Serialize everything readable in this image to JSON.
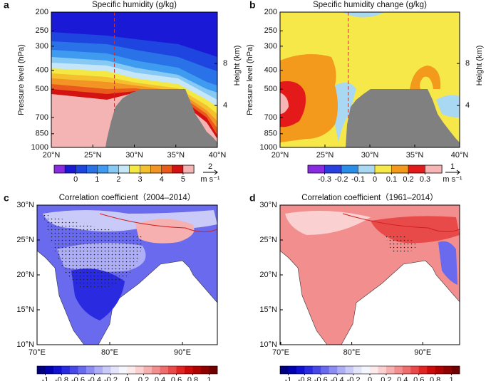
{
  "chart_data": [
    {
      "type": "contour",
      "panel": "a",
      "title": "Specific humidity (g/kg)",
      "ylabel": "Pressure level (hPa)",
      "y2label": "Height (km)",
      "xlim": [
        20,
        40
      ],
      "xticks": [
        {
          "value": 20,
          "label": "20°N"
        },
        {
          "value": 25,
          "label": "25°N"
        },
        {
          "value": 30,
          "label": "30°N"
        },
        {
          "value": 35,
          "label": "35°N"
        },
        {
          "value": 40,
          "label": "40°N"
        }
      ],
      "ylim": [
        1000,
        200
      ],
      "ylog": true,
      "yticks": [
        200,
        250,
        300,
        400,
        500,
        700,
        850,
        1000
      ],
      "y2lim": [
        0,
        12.9
      ],
      "y2ticks": [
        4,
        8
      ],
      "colorbar": {
        "lim": [
          -1,
          5.5
        ],
        "ticks": [
          0,
          1,
          2,
          3,
          4,
          5
        ],
        "colors": [
          "#8a2be2",
          "#1a1ad6",
          "#1f45e0",
          "#2a72e8",
          "#3f9bef",
          "#86c9f5",
          "#c4e6f8",
          "#f4e842",
          "#f5c02e",
          "#f29524",
          "#ea5a1c",
          "#d41212",
          "#f4b4b4"
        ]
      },
      "vector_key": {
        "value": 2,
        "unit": "m s⁻¹"
      }
    },
    {
      "type": "contour",
      "panel": "b",
      "title": "Specific humidity change (g/kg)",
      "ylabel": "Pressure level (hPa)",
      "y2label": "Height (km)",
      "xlim": [
        20,
        40
      ],
      "xticks": [
        {
          "value": 20,
          "label": "20°N"
        },
        {
          "value": 25,
          "label": "25°N"
        },
        {
          "value": 30,
          "label": "30°N"
        },
        {
          "value": 35,
          "label": "35°N"
        },
        {
          "value": 40,
          "label": "40°N"
        }
      ],
      "ylim": [
        1000,
        200
      ],
      "ylog": true,
      "yticks": [
        200,
        250,
        300,
        400,
        500,
        700,
        850,
        1000
      ],
      "y2lim": [
        0,
        12.9
      ],
      "y2ticks": [
        4,
        8
      ],
      "colorbar": {
        "lim": [
          -0.4,
          0.4
        ],
        "ticks": [
          -0.3,
          -0.2,
          -0.1,
          0,
          0.1,
          0.2,
          0.3
        ],
        "colors": [
          "#8a2be2",
          "#2a3fe0",
          "#2a8ee8",
          "#a8d8f2",
          "#f7e84a",
          "#f39a1c",
          "#e41a1a",
          "#f6b4b4"
        ]
      },
      "vector_key": {
        "value": 1,
        "unit": "m s⁻¹"
      }
    },
    {
      "type": "map",
      "panel": "c",
      "title": "Correlation coefficient（2004–2014）",
      "xlim": [
        70,
        94.8
      ],
      "xticks": [
        {
          "value": 70,
          "label": "70°E"
        },
        {
          "value": 80,
          "label": "80°E"
        },
        {
          "value": 90,
          "label": "90°E"
        }
      ],
      "ylim": [
        10,
        30
      ],
      "yticks": [
        {
          "value": 10,
          "label": "10°N"
        },
        {
          "value": 15,
          "label": "15°N"
        },
        {
          "value": 20,
          "label": "20°N"
        },
        {
          "value": 25,
          "label": "25°N"
        },
        {
          "value": 30,
          "label": "30°N"
        }
      ],
      "colorbar": {
        "lim": [
          -1.1,
          1.1
        ],
        "ticks": [
          -1,
          -0.8,
          -0.6,
          -0.4,
          -0.2,
          0,
          0.2,
          0.4,
          0.6,
          0.8,
          1
        ],
        "colors": [
          "#00007f",
          "#0000b0",
          "#1010d0",
          "#2a2ae0",
          "#4848e8",
          "#6a6aee",
          "#8c8cf2",
          "#aeaef6",
          "#cacaf8",
          "#e4e4fb",
          "#f6f6fe",
          "#fdeaea",
          "#fad0d0",
          "#f6b0b0",
          "#f28e8e",
          "#ee6e6e",
          "#e84a4a",
          "#e02424",
          "#cc0a0a",
          "#b00000",
          "#900000",
          "#700000"
        ]
      }
    },
    {
      "type": "map",
      "panel": "d",
      "title": "Correlation coefficient（1961–2014）",
      "xlim": [
        69.9,
        95.2
      ],
      "xticks": [
        {
          "value": 70,
          "label": "70°E"
        },
        {
          "value": 80,
          "label": "80°E"
        },
        {
          "value": 90,
          "label": "90°E"
        }
      ],
      "ylim": [
        10,
        30
      ],
      "yticks": [
        {
          "value": 10,
          "label": "10°N"
        },
        {
          "value": 15,
          "label": "15°N"
        },
        {
          "value": 20,
          "label": "20°N"
        },
        {
          "value": 25,
          "label": "25°N"
        },
        {
          "value": 30,
          "label": "30°N"
        }
      ],
      "colorbar": {
        "lim": [
          -1.1,
          1.1
        ],
        "ticks": [
          -1,
          -0.8,
          -0.6,
          -0.4,
          -0.2,
          0,
          0.2,
          0.4,
          0.6,
          0.8,
          1
        ],
        "colors": [
          "#00007f",
          "#0000b0",
          "#1010d0",
          "#2a2ae0",
          "#4848e8",
          "#6a6aee",
          "#8c8cf2",
          "#aeaef6",
          "#cacaf8",
          "#e4e4fb",
          "#f6f6fe",
          "#fdeaea",
          "#fad0d0",
          "#f6b0b0",
          "#f28e8e",
          "#ee6e6e",
          "#e84a4a",
          "#e02424",
          "#cc0a0a",
          "#b00000",
          "#900000",
          "#700000"
        ]
      }
    }
  ]
}
